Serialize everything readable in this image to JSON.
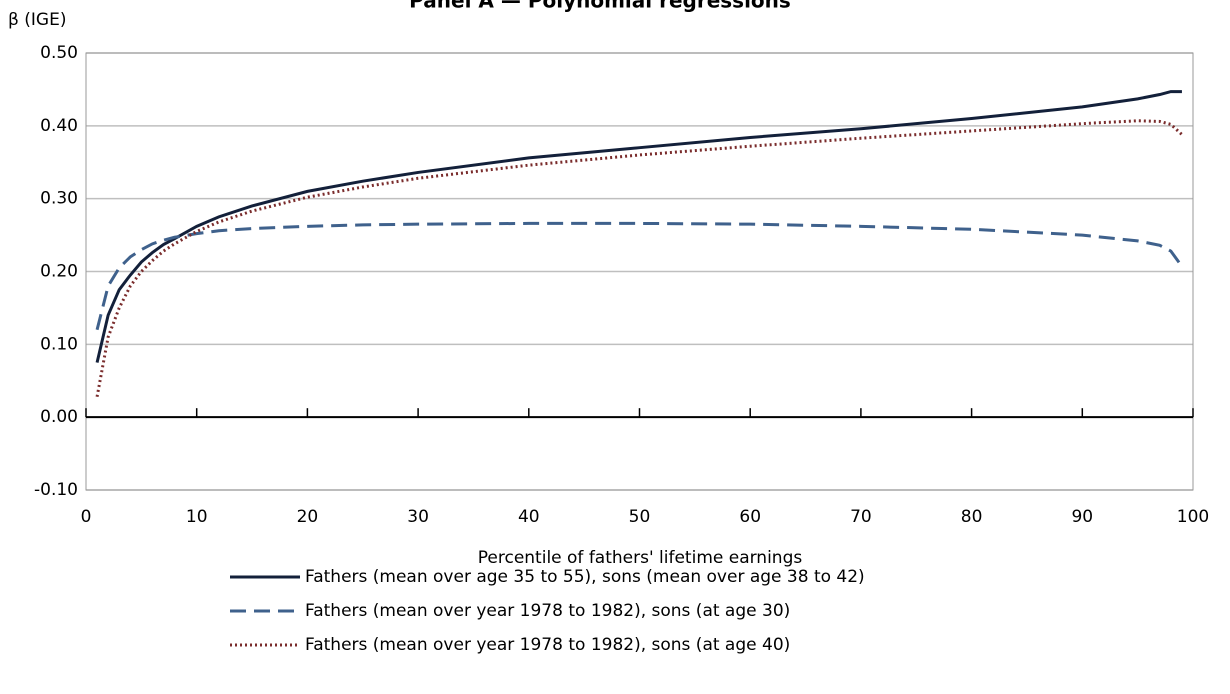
{
  "chart_data": {
    "type": "line",
    "title": "Panel A — Polynomial regressions",
    "ylabel": "β (IGE)",
    "xlabel": "Percentile of fathers' lifetime earnings",
    "x": [
      1,
      2,
      3,
      4,
      5,
      6,
      7,
      8,
      10,
      12,
      15,
      20,
      25,
      30,
      40,
      50,
      60,
      70,
      80,
      90,
      95,
      97,
      98,
      99
    ],
    "series": [
      {
        "name": "Fathers (mean over age 35 to 55), sons (mean over age 38 to 42)",
        "color": "#13203a",
        "dash": "solid",
        "values": [
          0.075,
          0.14,
          0.175,
          0.195,
          0.213,
          0.226,
          0.237,
          0.245,
          0.262,
          0.275,
          0.29,
          0.31,
          0.324,
          0.336,
          0.356,
          0.37,
          0.384,
          0.396,
          0.41,
          0.426,
          0.437,
          0.443,
          0.447,
          0.447
        ]
      },
      {
        "name": "Fathers (mean over year 1978 to 1982), sons (at age 30)",
        "color": "#3f618c",
        "dash": "dashed",
        "values": [
          0.12,
          0.18,
          0.205,
          0.22,
          0.23,
          0.238,
          0.243,
          0.247,
          0.252,
          0.256,
          0.259,
          0.262,
          0.264,
          0.265,
          0.266,
          0.266,
          0.265,
          0.262,
          0.258,
          0.25,
          0.242,
          0.236,
          0.228,
          0.207
        ]
      },
      {
        "name": "Fathers (mean over year 1978 to 1982), sons (at age 40)",
        "color": "#7a2c2c",
        "dash": "dotted",
        "values": [
          0.028,
          0.11,
          0.15,
          0.18,
          0.2,
          0.215,
          0.228,
          0.238,
          0.255,
          0.268,
          0.283,
          0.302,
          0.316,
          0.328,
          0.346,
          0.36,
          0.372,
          0.383,
          0.393,
          0.403,
          0.407,
          0.406,
          0.402,
          0.388
        ]
      }
    ],
    "xlim": [
      0,
      100
    ],
    "xticks": [
      0,
      10,
      20,
      30,
      40,
      50,
      60,
      70,
      80,
      90,
      100
    ],
    "ylim": [
      -0.1,
      0.5
    ],
    "yticks": [
      {
        "value": -0.1,
        "label": "-0.10"
      },
      {
        "value": 0,
        "label": "0.00"
      },
      {
        "value": 0.1,
        "label": "0.10"
      },
      {
        "value": 0.2,
        "label": "0.20"
      },
      {
        "value": 0.3,
        "label": "0.30"
      },
      {
        "value": 0.4,
        "label": "0.40"
      },
      {
        "value": 0.5,
        "label": "0.50"
      }
    ],
    "grid": true
  }
}
